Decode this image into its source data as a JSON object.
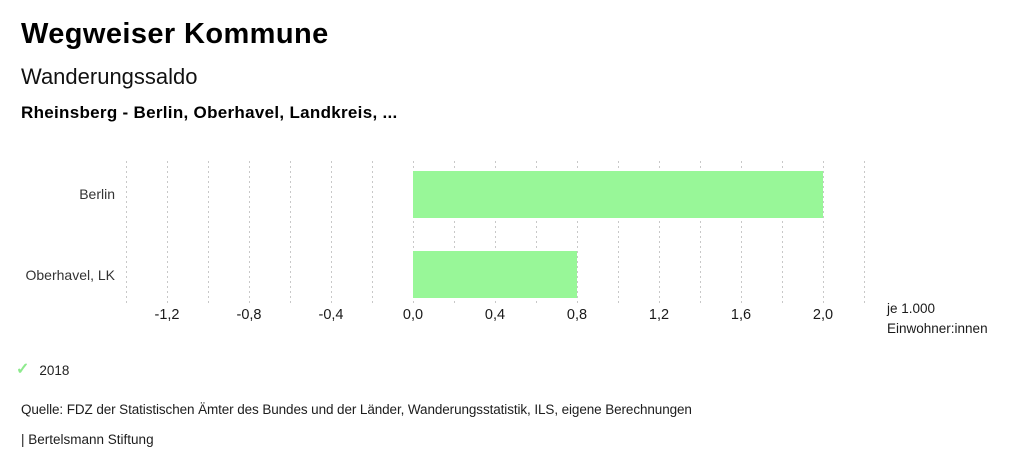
{
  "header": {
    "app_title": "Wegweiser Kommune",
    "chart_title": "Wanderungssaldo",
    "subtitle": "Rheinsberg - Berlin, Oberhavel, Landkreis, ..."
  },
  "chart_data": {
    "type": "bar",
    "orientation": "horizontal",
    "title": "Wanderungssaldo",
    "subtitle": "Rheinsberg - Berlin, Oberhavel, Landkreis, ...",
    "categories": [
      "Berlin",
      "Oberhavel, LK"
    ],
    "series": [
      {
        "name": "2018",
        "values": [
          2.0,
          0.8
        ]
      }
    ],
    "unit_lines": [
      "je 1.000",
      "Einwohner:innen"
    ],
    "xlim": [
      -1.4,
      2.2
    ],
    "grid_step": 0.2,
    "grid": true,
    "xticks": [
      {
        "value": -1.2,
        "label": "-1,2"
      },
      {
        "value": -0.8,
        "label": "-0,8"
      },
      {
        "value": -0.4,
        "label": "-0,4"
      },
      {
        "value": 0.0,
        "label": "0,0"
      },
      {
        "value": 0.4,
        "label": "0,4"
      },
      {
        "value": 0.8,
        "label": "0,8"
      },
      {
        "value": 1.2,
        "label": "1,2"
      },
      {
        "value": 1.6,
        "label": "1,6"
      },
      {
        "value": 2.0,
        "label": "2,0"
      }
    ],
    "bar_color": "#98f798",
    "gridline_color": "#c8c8c8",
    "legend_position": "bottom-left"
  },
  "legend": {
    "check_glyph": "✓",
    "check_color": "#8dea8d",
    "items": [
      {
        "label": "2018",
        "checked": true
      }
    ]
  },
  "footer": {
    "source": "Quelle: FDZ der Statistischen Ämter des Bundes und der Länder, Wanderungsstatistik, ILS, eigene Berechnungen",
    "attribution": "| Bertelsmann Stiftung"
  }
}
